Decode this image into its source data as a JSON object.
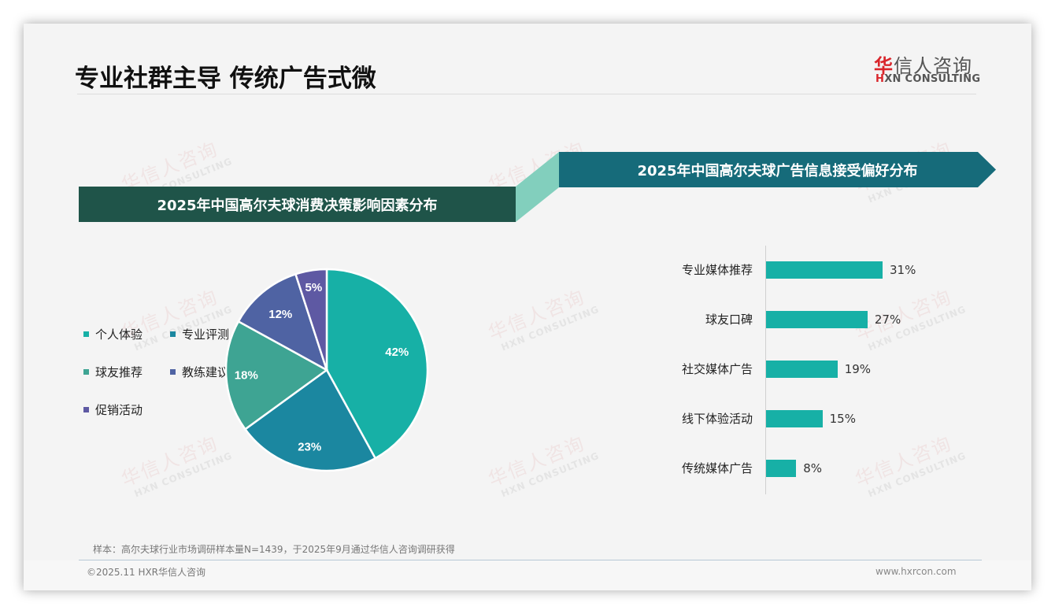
{
  "header": {
    "title": "专业社群主导 传统广告式微",
    "logo": {
      "cn_first": "华",
      "cn_rest": "信人咨询",
      "en_mark": "H",
      "en_rest": "XN CONSULTING"
    }
  },
  "watermark": {
    "cn": "华信人咨询",
    "en": "HXN CONSULTING"
  },
  "left_panel": {
    "banner_title": "2025年中国高尔夫球消费决策影响因素分布"
  },
  "right_panel": {
    "banner_title": "2025年中国高尔夫球广告信息接受偏好分布"
  },
  "colors": {
    "banner_left": "#1f5449",
    "banner_right": "#166b7a",
    "connector": "#82cfbd",
    "bar": "#17b0a6",
    "pie": [
      "#17b0a6",
      "#1b87a0",
      "#3ea493",
      "#4f63a3",
      "#5e59a3"
    ]
  },
  "chart_data": [
    {
      "type": "pie",
      "title": "2025年中国高尔夫球消费决策影响因素分布",
      "categories": [
        "个人体验",
        "专业评测",
        "球友推荐",
        "教练建议",
        "促销活动"
      ],
      "values": [
        42,
        23,
        18,
        12,
        5
      ],
      "labels": [
        "42%",
        "23%",
        "18%",
        "12%",
        "5%"
      ],
      "unit": "%",
      "start_angle": "12 o'clock, clockwise",
      "legend_position": "left",
      "legend": [
        {
          "label": "个人体验",
          "color": "#17b0a6"
        },
        {
          "label": "专业评测",
          "color": "#1b87a0"
        },
        {
          "label": "球友推荐",
          "color": "#3ea493"
        },
        {
          "label": "教练建议",
          "color": "#4f63a3"
        },
        {
          "label": "促销活动",
          "color": "#5e59a3"
        }
      ]
    },
    {
      "type": "bar",
      "orientation": "horizontal",
      "title": "2025年中国高尔夫球广告信息接受偏好分布",
      "categories": [
        "专业媒体推荐",
        "球友口碑",
        "社交媒体广告",
        "线下体验活动",
        "传统媒体广告"
      ],
      "values": [
        31,
        27,
        19,
        15,
        8
      ],
      "labels": [
        "31%",
        "27%",
        "19%",
        "15%",
        "8%"
      ],
      "unit": "%",
      "xlabel": "",
      "ylabel": "",
      "grid": false,
      "legend": false
    }
  ],
  "footer": {
    "note": "样本：高尔夫球行业市场调研样本量N=1439，于2025年9月通过华信人咨询调研获得",
    "copyright": "©2025.11 HXR华信人咨询",
    "website": "www.hxrcon.com"
  }
}
